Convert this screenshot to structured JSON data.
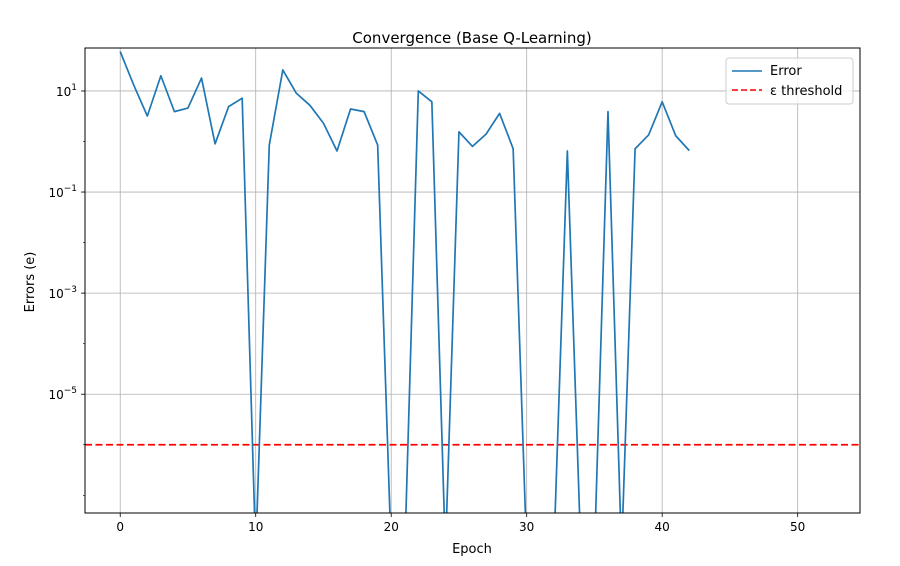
{
  "chart_data": {
    "type": "line",
    "title": "Convergence (Base Q-Learning)",
    "xlabel": "Epoch",
    "ylabel": "Errors (e)",
    "xlim": [
      -2.6,
      54.6
    ],
    "ylim_log10": [
      -7.35,
      1.85
    ],
    "yscale": "log",
    "grid": true,
    "legend_position": "top-right",
    "x_ticks": [
      0,
      10,
      20,
      30,
      40,
      50
    ],
    "y_ticks": [
      {
        "base": "10",
        "exp": "1",
        "log10": 1
      },
      {
        "base": "10",
        "exp": "−1",
        "log10": -1
      },
      {
        "base": "10",
        "exp": "−3",
        "log10": -3
      },
      {
        "base": "10",
        "exp": "−5",
        "log10": -5
      }
    ],
    "series": [
      {
        "name": "Error",
        "color": "#1f77b4",
        "style": "solid",
        "comment_zero": "null values indicate error dropped to 0 (off the bottom of the log axis)",
        "x": [
          0,
          1,
          2,
          3,
          4,
          5,
          6,
          7,
          8,
          9,
          10,
          11,
          12,
          13,
          14,
          15,
          16,
          17,
          18,
          19,
          20,
          21,
          22,
          23,
          24,
          25,
          26,
          27,
          28,
          29,
          30,
          31,
          32,
          33,
          34,
          35,
          36,
          37,
          38,
          39,
          40,
          41,
          42
        ],
        "y": [
          60,
          13,
          3.2,
          20,
          3.9,
          4.6,
          18,
          0.9,
          4.9,
          7.2,
          null,
          0.85,
          26,
          9.0,
          5.2,
          2.3,
          0.65,
          4.4,
          3.9,
          0.85,
          null,
          null,
          10,
          6.1,
          null,
          1.55,
          0.8,
          1.4,
          3.6,
          0.72,
          null,
          null,
          null,
          0.65,
          null,
          null,
          3.9,
          null,
          0.72,
          1.35,
          6.1,
          1.3,
          0.66
        ]
      },
      {
        "name": "ε threshold",
        "color": "#ff0000",
        "style": "dashed",
        "y_constant": 1e-06
      }
    ]
  }
}
